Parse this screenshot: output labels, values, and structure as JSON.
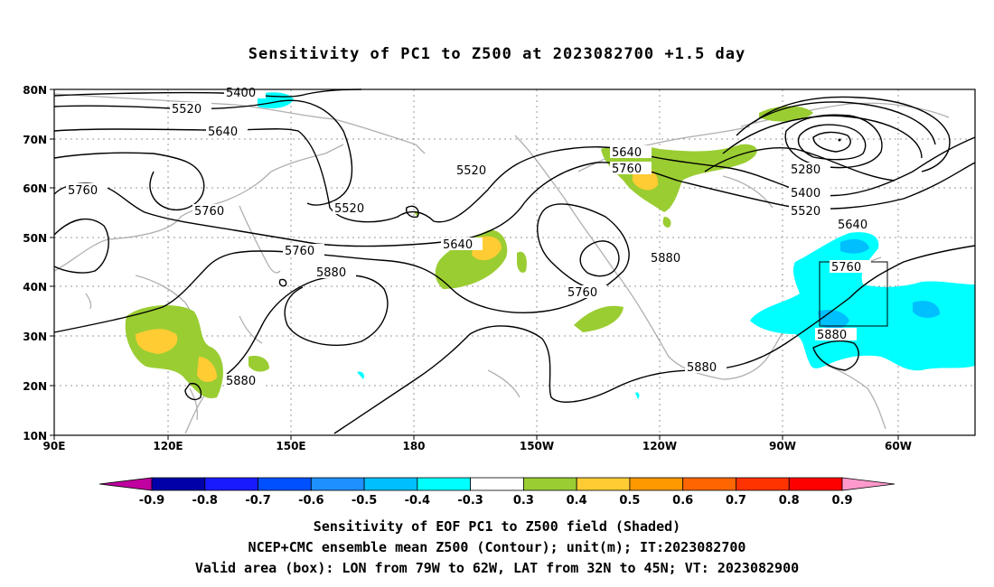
{
  "title": "Sensitivity of PC1 to Z500 at 2023082700 +1.5 day",
  "lat_ticks": [
    "80N",
    "70N",
    "60N",
    "50N",
    "40N",
    "30N",
    "20N",
    "10N"
  ],
  "lon_ticks": [
    "90E",
    "120E",
    "150E",
    "180",
    "150W",
    "120W",
    "90W",
    "60W"
  ],
  "contours": [
    {
      "label": "5400",
      "value": 5400
    },
    {
      "label": "5520",
      "value": 5520
    },
    {
      "label": "5640",
      "value": 5640
    },
    {
      "label": "5760",
      "value": 5760
    },
    {
      "label": "5880",
      "value": 5880
    },
    {
      "label": "5280",
      "value": 5280
    }
  ],
  "colorbar": {
    "labels": [
      "-0.9",
      "-0.8",
      "-0.7",
      "-0.6",
      "-0.5",
      "-0.4",
      "-0.3",
      "0.3",
      "0.4",
      "0.5",
      "0.6",
      "0.7",
      "0.8",
      "0.9"
    ],
    "colors": [
      "#0000a8",
      "#1a1aff",
      "#0050ff",
      "#1e90ff",
      "#00bfff",
      "#00ffff",
      "#ffffff",
      "#9acd32",
      "#ffcc33",
      "#ff9900",
      "#ff6600",
      "#ff3300",
      "#ff0000"
    ],
    "low_arrow_color": "#c000a0",
    "high_arrow_color": "#ff99cc"
  },
  "valid_box": {
    "lon_from": "79W",
    "lon_to": "62W",
    "lat_from": "32N",
    "lat_to": "45N"
  },
  "footer": {
    "line1": "Sensitivity of EOF PC1 to Z500 field (Shaded)",
    "line2": "NCEP+CMC ensemble mean Z500 (Contour); unit(m); IT:2023082700",
    "line3": "Valid area (box): LON from 79W to 62W, LAT from 32N to 45N; VT: 2023082900"
  }
}
